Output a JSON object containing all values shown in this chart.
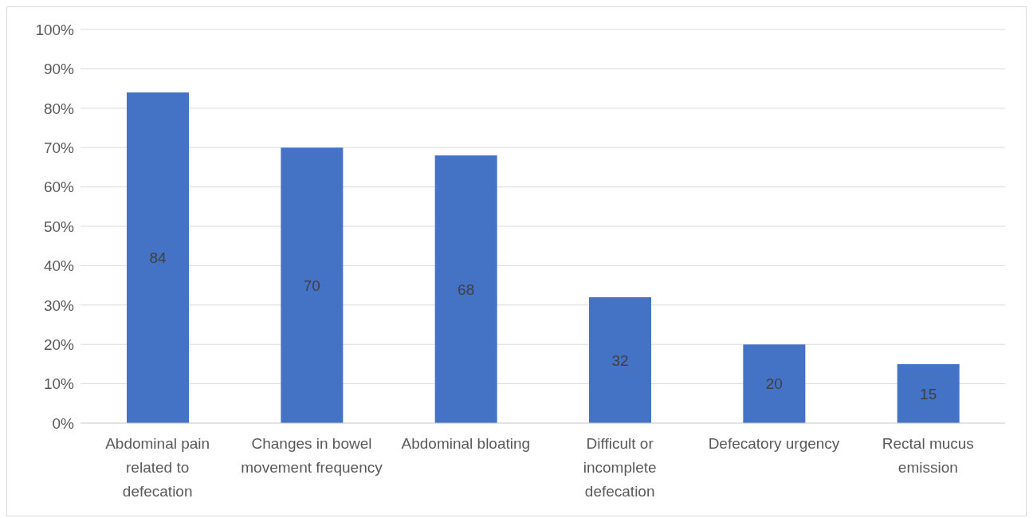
{
  "chart_data": {
    "type": "bar",
    "categories": [
      "Abdominal pain related to defecation",
      "Changes in bowel movement frequency",
      "Abdominal bloating",
      "Difficult or incomplete defecation",
      "Defecatory urgency",
      "Rectal mucus emission"
    ],
    "values": [
      84,
      70,
      68,
      32,
      20,
      15
    ],
    "color": "#4472c4",
    "data_labels": true,
    "ylim": [
      0,
      100
    ],
    "yticks": [
      {
        "value": 0,
        "label": "0%"
      },
      {
        "value": 10,
        "label": "10%"
      },
      {
        "value": 20,
        "label": "20%"
      },
      {
        "value": 30,
        "label": "30%"
      },
      {
        "value": 40,
        "label": "40%"
      },
      {
        "value": 50,
        "label": "50%"
      },
      {
        "value": 60,
        "label": "60%"
      },
      {
        "value": 70,
        "label": "70%"
      },
      {
        "value": 80,
        "label": "80%"
      },
      {
        "value": 90,
        "label": "90%"
      },
      {
        "value": 100,
        "label": "100%"
      }
    ],
    "grid": "y",
    "legend": false
  }
}
